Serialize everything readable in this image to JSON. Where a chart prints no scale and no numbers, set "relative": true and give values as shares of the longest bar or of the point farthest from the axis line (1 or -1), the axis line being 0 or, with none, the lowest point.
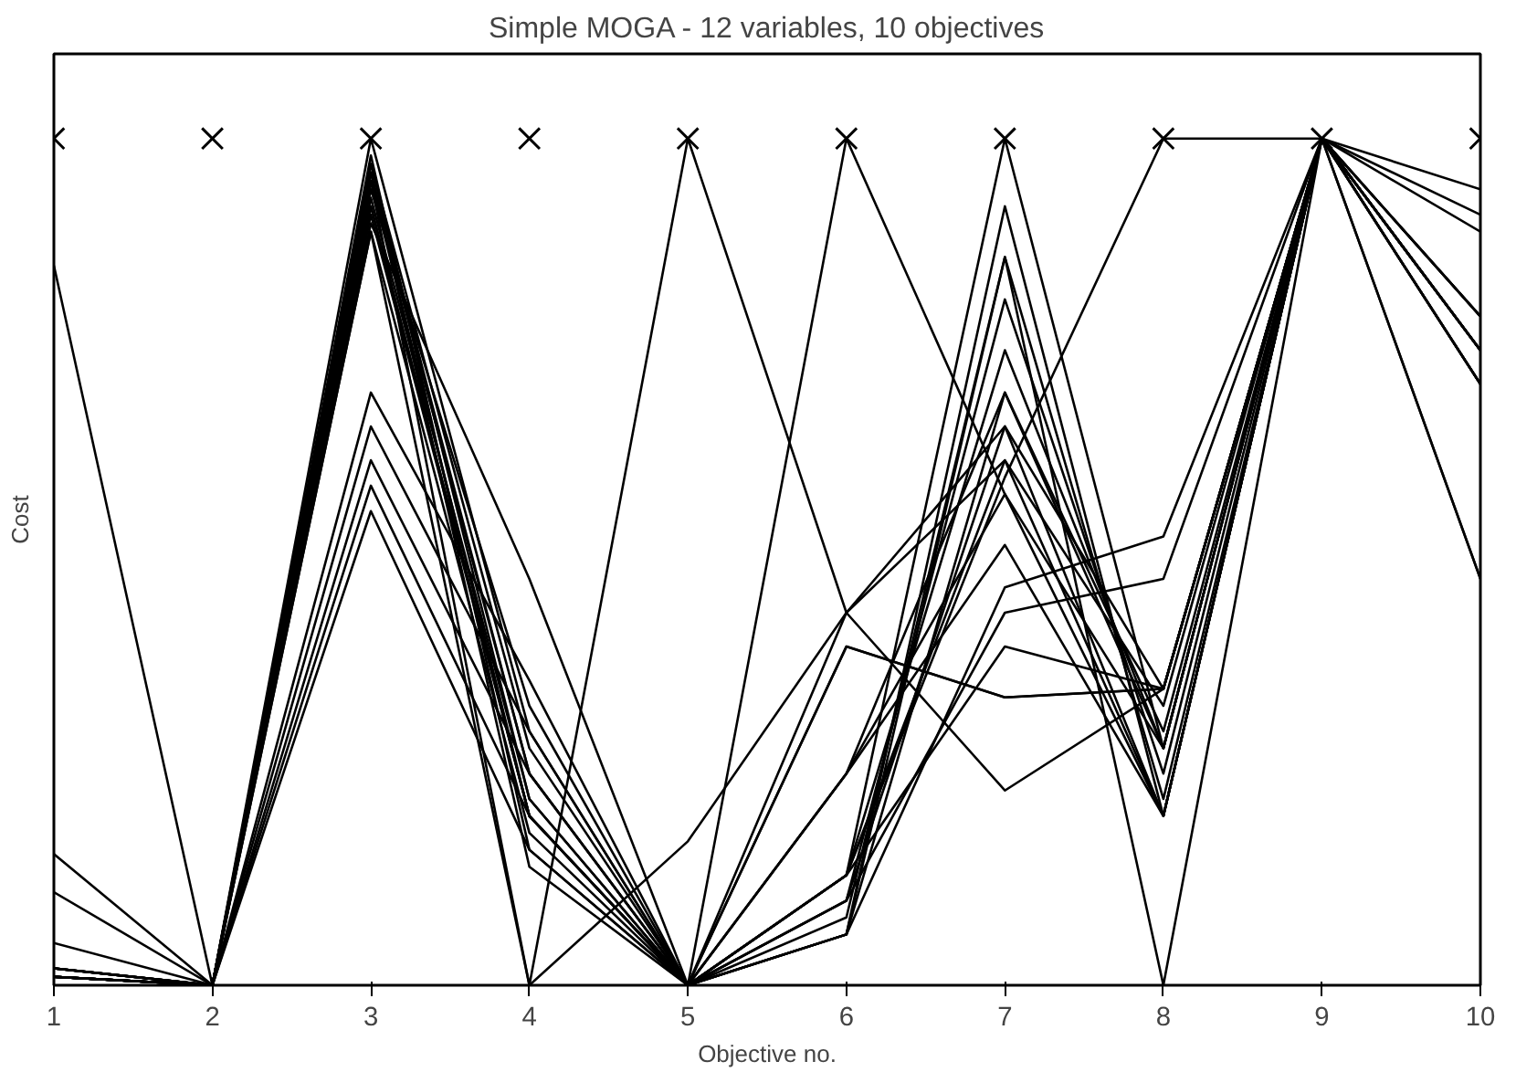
{
  "chart_data": {
    "type": "line",
    "title": "Simple MOGA - 12 variables, 10 objectives",
    "xlabel": "Objective no.",
    "ylabel": "Cost",
    "x": [
      1,
      2,
      3,
      4,
      5,
      6,
      7,
      8,
      9,
      10
    ],
    "xlim": [
      1,
      10
    ],
    "xticks": [
      1,
      2,
      3,
      4,
      5,
      6,
      7,
      8,
      9,
      10
    ],
    "relative": true,
    "tick_labels": "x",
    "grid": false,
    "line_style": "solid",
    "series": [
      {
        "color": "#000000",
        "values": [
          0.02,
          0,
          1.0,
          0.3,
          0,
          0.06,
          0.92,
          0.2,
          1,
          0.79
        ]
      },
      {
        "color": "#000000",
        "values": [
          0.02,
          0,
          0.97,
          0.28,
          0,
          0.08,
          0.86,
          0.22,
          1,
          0.75
        ]
      },
      {
        "color": "#000000",
        "values": [
          0.01,
          0,
          0.95,
          0.25,
          0,
          0.1,
          0.81,
          0.25,
          1,
          0.71
        ]
      },
      {
        "color": "#000000",
        "values": [
          0.01,
          0,
          0.93,
          0.22,
          0,
          0.13,
          0.75,
          0.28,
          1,
          0.79
        ]
      },
      {
        "color": "#000000",
        "values": [
          0.01,
          0,
          0.91,
          0.2,
          0,
          0.06,
          0.7,
          0.3,
          1,
          0.75
        ]
      },
      {
        "color": "#000000",
        "values": [
          0.02,
          0,
          0.89,
          0.18,
          0,
          0.1,
          0.66,
          0.35,
          1,
          0.48
        ]
      },
      {
        "color": "#000000",
        "values": [
          0.05,
          0,
          0.98,
          0.16,
          0,
          0.13,
          0.62,
          0.33,
          1,
          0.71
        ]
      },
      {
        "color": "#000000",
        "values": [
          0.11,
          0,
          0.96,
          0.14,
          0,
          0.25,
          0.58,
          0.28,
          1,
          0.89
        ]
      },
      {
        "color": "#000000",
        "values": [
          0.155,
          0,
          0.94,
          0.33,
          0,
          0.25,
          0.52,
          0.2,
          1,
          0.91
        ]
      },
      {
        "color": "#000000",
        "values": [
          0.01,
          0,
          0.7,
          0.36,
          0,
          0.06,
          0.47,
          0.53,
          1,
          0.94
        ]
      },
      {
        "color": "#000000",
        "values": [
          0.02,
          0,
          0.66,
          0.3,
          0,
          0.1,
          0.44,
          0.48,
          1,
          0.75
        ]
      },
      {
        "color": "#000000",
        "values": [
          0.01,
          0,
          0.62,
          0.25,
          0,
          0.13,
          0.4,
          0.35,
          1,
          0.48
        ]
      },
      {
        "color": "#000000",
        "values": [
          0.01,
          0,
          0.59,
          0.2,
          0,
          0.4,
          0.34,
          0.35,
          1,
          0.71
        ]
      },
      {
        "color": "#000000",
        "values": [
          0.01,
          0,
          0.56,
          0.16,
          0,
          0.44,
          0.23,
          0.35,
          1,
          0.79
        ]
      },
      {
        "color": "#000000",
        "values": [
          0.85,
          0,
          0.9,
          0.48,
          0,
          0.25,
          0.7,
          0.28,
          1,
          0.75
        ]
      },
      {
        "color": "#000000",
        "values": [
          0.02,
          0,
          0.95,
          0,
          1.0,
          0.44,
          0.62,
          0.2,
          1,
          0.75
        ]
      },
      {
        "color": "#000000",
        "values": [
          0.01,
          0,
          0.89,
          0,
          0.17,
          0.44,
          0.66,
          0.2,
          1,
          0.71
        ]
      },
      {
        "color": "#000000",
        "values": [
          0.01,
          0,
          0.95,
          0.2,
          0,
          1.0,
          0.58,
          0.2,
          1,
          0.75
        ]
      },
      {
        "color": "#000000",
        "values": [
          0.02,
          0,
          0.96,
          0.25,
          0,
          0.13,
          0.6,
          1.0,
          1,
          0.75
        ]
      },
      {
        "color": "#000000",
        "values": [
          0.01,
          0,
          0.92,
          0.2,
          0,
          0.06,
          0.86,
          0,
          1,
          0.79
        ]
      },
      {
        "color": "#000000",
        "values": [
          0.01,
          0,
          0.92,
          0.2,
          0,
          0.4,
          0.34,
          0.35,
          1,
          0.75
        ]
      },
      {
        "color": "#000000",
        "values": [
          0.01,
          0,
          0.97,
          0.22,
          0,
          0.13,
          1.0,
          0.28,
          1,
          0.71
        ]
      },
      {
        "type": "scatter",
        "marker": "cross",
        "color": "#000000",
        "values": [
          1,
          1,
          1,
          1,
          1,
          1,
          1,
          1,
          1,
          1
        ]
      }
    ]
  }
}
